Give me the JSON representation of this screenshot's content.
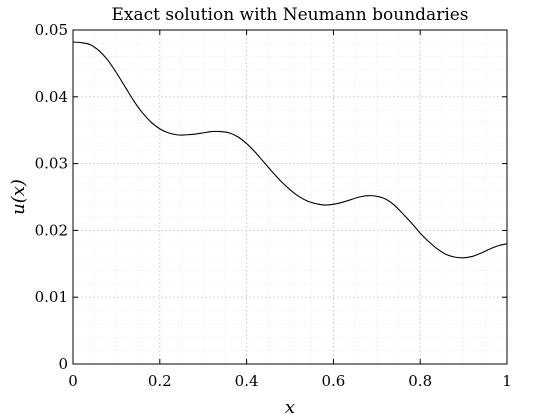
{
  "chart_data": {
    "type": "line",
    "title": "Exact solution with Neumann boundaries",
    "xlabel": "x",
    "ylabel": "u(x)",
    "xlim": [
      0,
      1
    ],
    "ylim": [
      0,
      0.05
    ],
    "grid": true,
    "minor_grid": true,
    "xticks": [
      0,
      0.2,
      0.4,
      0.6,
      0.8,
      1
    ],
    "xtick_labels": [
      "0",
      "0.2",
      "0.4",
      "0.6",
      "0.8",
      "1"
    ],
    "yticks": [
      0,
      0.01,
      0.02,
      0.03,
      0.04,
      0.05
    ],
    "ytick_labels": [
      "0",
      "0.01",
      "0.02",
      "0.03",
      "0.04",
      "0.05"
    ],
    "series": [
      {
        "color": "#000000",
        "x": [
          0,
          0.02,
          0.04,
          0.06,
          0.08,
          0.1,
          0.12,
          0.14,
          0.16,
          0.18,
          0.2,
          0.22,
          0.24,
          0.26,
          0.28,
          0.3,
          0.32,
          0.34,
          0.36,
          0.38,
          0.4,
          0.42,
          0.44,
          0.46,
          0.48,
          0.5,
          0.52,
          0.54,
          0.56,
          0.58,
          0.6,
          0.62,
          0.64,
          0.66,
          0.68,
          0.7,
          0.72,
          0.74,
          0.76,
          0.78,
          0.8,
          0.82,
          0.84,
          0.86,
          0.88,
          0.9,
          0.92,
          0.94,
          0.96,
          0.98,
          1.0
        ],
        "y": [
          0.0482,
          0.0481,
          0.0478,
          0.0469,
          0.0455,
          0.0436,
          0.0415,
          0.0394,
          0.0376,
          0.0362,
          0.0352,
          0.0346,
          0.0343,
          0.0343,
          0.0344,
          0.0346,
          0.0348,
          0.0348,
          0.0346,
          0.034,
          0.033,
          0.0317,
          0.0302,
          0.0287,
          0.0273,
          0.0261,
          0.0251,
          0.0244,
          0.024,
          0.0238,
          0.0239,
          0.0242,
          0.0246,
          0.025,
          0.0252,
          0.0251,
          0.0247,
          0.0238,
          0.0225,
          0.0211,
          0.0196,
          0.0183,
          0.0172,
          0.0164,
          0.016,
          0.0159,
          0.0161,
          0.0166,
          0.0172,
          0.0177,
          0.018
        ]
      }
    ]
  }
}
